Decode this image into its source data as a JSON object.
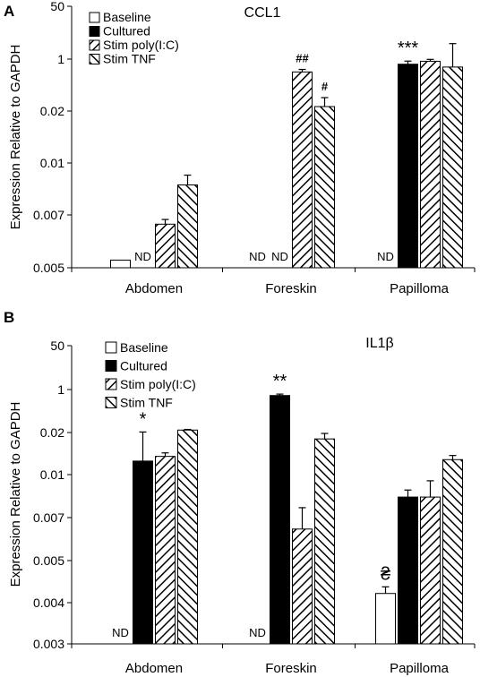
{
  "chart_data": [
    {
      "type": "bar",
      "panel_label": "A",
      "title": "CCL1",
      "ylabel": "Expression Relative to GAPDH",
      "y_tick_labels": [
        "0.005",
        "0.007",
        "0.01",
        "0.02",
        "1",
        "50"
      ],
      "categories": [
        "Abdomen",
        "Foreskin",
        "Papilloma"
      ],
      "legend_position": "top-left",
      "series": [
        {
          "name": "Baseline",
          "fill": "white",
          "values": [
            0.00525,
            null,
            null
          ],
          "errors": [
            0,
            null,
            null
          ],
          "labels": [
            null,
            "ND",
            "ND"
          ]
        },
        {
          "name": "Cultured",
          "fill": "black",
          "values": [
            null,
            null,
            0.68
          ],
          "errors": [
            null,
            null,
            0.18
          ],
          "labels": [
            "ND",
            "ND",
            "***"
          ]
        },
        {
          "name": "Stim poly(I:C)",
          "fill": "hatch-forward",
          "values": [
            0.0066,
            0.38,
            0.85
          ],
          "errors": [
            0.0002,
            0.08,
            0.13
          ],
          "labels": [
            null,
            "##",
            null
          ]
        },
        {
          "name": "Stim TNF",
          "fill": "hatch-back",
          "values": [
            0.0086,
            0.028,
            0.55
          ],
          "errors": [
            0.0006,
            0.027,
            2.6
          ],
          "labels": [
            null,
            "#",
            null
          ]
        }
      ]
    },
    {
      "type": "bar",
      "panel_label": "B",
      "title": "IL1β",
      "ylabel": "Expression Relative to GAPDH",
      "y_tick_labels": [
        "0.003",
        "0.004",
        "0.005",
        "0.007",
        "0.01",
        "0.02",
        "1",
        "50"
      ],
      "categories": [
        "Abdomen",
        "Foreskin",
        "Papilloma"
      ],
      "legend_position": "top-left",
      "series": [
        {
          "name": "Baseline",
          "fill": "white",
          "values": [
            null,
            null,
            0.0042
          ],
          "errors": [
            null,
            null,
            0.00015
          ],
          "labels": [
            "ND",
            "ND",
            "₴"
          ]
        },
        {
          "name": "Cultured",
          "fill": "black",
          "values": [
            0.0125,
            0.58,
            0.0083
          ],
          "errors": [
            0.0085,
            0.08,
            0.0005
          ],
          "labels": [
            "*",
            "**",
            null
          ]
        },
        {
          "name": "Stim poly(I:C)",
          "fill": "hatch-forward",
          "values": [
            0.0135,
            0.0064,
            0.0083
          ],
          "errors": [
            0.0008,
            0.0012,
            0.0012
          ],
          "labels": [
            null,
            null,
            null
          ]
        },
        {
          "name": "Stim TNF",
          "fill": "hatch-back",
          "values": [
            0.025,
            0.018,
            0.0128
          ],
          "errors": [
            0.0015,
            0.0017,
            0.0009
          ],
          "labels": [
            null,
            null,
            null
          ]
        }
      ]
    }
  ]
}
